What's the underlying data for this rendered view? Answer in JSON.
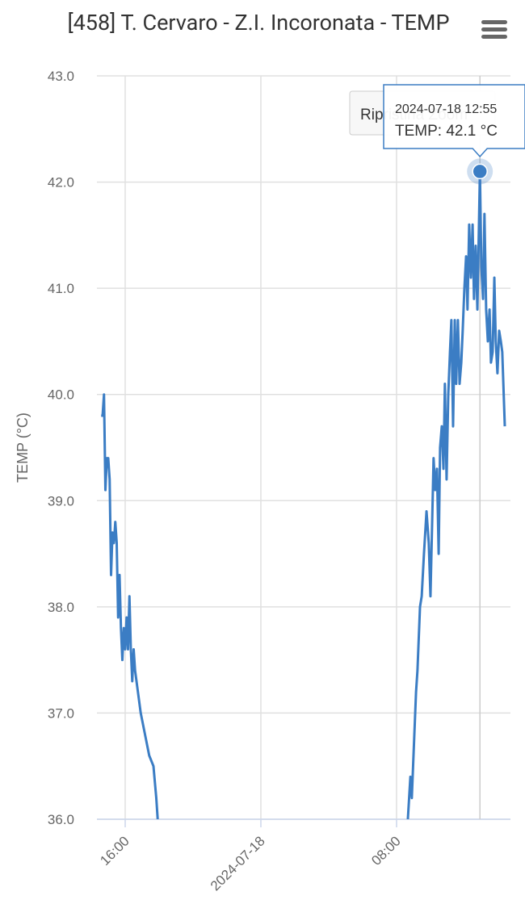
{
  "reset_zoom": "Ripristina Zoom",
  "chart_data": {
    "type": "line",
    "title": "[458] T. Cervaro - Z.I. Incoronata - TEMP",
    "y_label": "TEMP (°C)",
    "color": "#3b7dc4",
    "grid": true,
    "xlim": [
      "2024-07-17 14:20",
      "2024-07-18 14:43"
    ],
    "xticks": [
      {
        "value": "2024-07-17 16:00",
        "label": "16:00"
      },
      {
        "value": "2024-07-18 00:00",
        "label": "2024-07-18"
      },
      {
        "value": "2024-07-18 08:00",
        "label": "08:00"
      }
    ],
    "ylim": [
      36,
      43
    ],
    "yticks": [
      {
        "value": 36,
        "label": "36.0"
      },
      {
        "value": 37,
        "label": "37.0"
      },
      {
        "value": 38,
        "label": "38.0"
      },
      {
        "value": 39,
        "label": "39.0"
      },
      {
        "value": 40,
        "label": "40.0"
      },
      {
        "value": 41,
        "label": "41.0"
      },
      {
        "value": 42,
        "label": "42.0"
      },
      {
        "value": 43,
        "label": "43.0"
      }
    ],
    "x": [
      "2024-07-17 14:35",
      "2024-07-17 14:40",
      "2024-07-17 14:45",
      "2024-07-17 14:50",
      "2024-07-17 14:55",
      "2024-07-17 15:00",
      "2024-07-17 15:05",
      "2024-07-17 15:10",
      "2024-07-17 15:15",
      "2024-07-17 15:20",
      "2024-07-17 15:25",
      "2024-07-17 15:30",
      "2024-07-17 15:35",
      "2024-07-17 15:40",
      "2024-07-17 15:45",
      "2024-07-17 15:50",
      "2024-07-17 15:55",
      "2024-07-17 16:00",
      "2024-07-17 16:05",
      "2024-07-17 16:10",
      "2024-07-17 16:15",
      "2024-07-17 16:20",
      "2024-07-17 16:25",
      "2024-07-17 16:30",
      "2024-07-17 16:35",
      "2024-07-17 16:55",
      "2024-07-17 17:10",
      "2024-07-17 17:25",
      "2024-07-17 17:40",
      "2024-07-17 17:50",
      "2024-07-17 17:55",
      "2024-07-17 18:00",
      "2024-07-18 08:40",
      "2024-07-18 08:49",
      "2024-07-18 08:54",
      "2024-07-18 09:00",
      "2024-07-18 09:09",
      "2024-07-18 09:14",
      "2024-07-18 09:23",
      "2024-07-18 09:29",
      "2024-07-18 09:37",
      "2024-07-18 09:46",
      "2024-07-18 09:54",
      "2024-07-18 10:00",
      "2024-07-18 10:06",
      "2024-07-18 10:11",
      "2024-07-18 10:17",
      "2024-07-18 10:23",
      "2024-07-18 10:29",
      "2024-07-18 10:34",
      "2024-07-18 10:40",
      "2024-07-18 10:46",
      "2024-07-18 10:51",
      "2024-07-18 10:57",
      "2024-07-18 11:03",
      "2024-07-18 11:09",
      "2024-07-18 11:14",
      "2024-07-18 11:20",
      "2024-07-18 11:26",
      "2024-07-18 11:31",
      "2024-07-18 11:37",
      "2024-07-18 11:43",
      "2024-07-18 11:49",
      "2024-07-18 11:54",
      "2024-07-18 12:00",
      "2024-07-18 12:06",
      "2024-07-18 12:11",
      "2024-07-18 12:17",
      "2024-07-18 12:23",
      "2024-07-18 12:29",
      "2024-07-18 12:34",
      "2024-07-18 12:40",
      "2024-07-18 12:46",
      "2024-07-18 12:55",
      "2024-07-18 13:00",
      "2024-07-18 13:06",
      "2024-07-18 13:11",
      "2024-07-18 13:17",
      "2024-07-18 13:23",
      "2024-07-18 13:29",
      "2024-07-18 13:34",
      "2024-07-18 13:40",
      "2024-07-18 13:46",
      "2024-07-18 13:51",
      "2024-07-18 13:57",
      "2024-07-18 14:03",
      "2024-07-18 14:09",
      "2024-07-18 14:14",
      "2024-07-18 14:23"
    ],
    "values": [
      39.8,
      39.8,
      40.0,
      39.1,
      39.4,
      39.4,
      39.2,
      38.3,
      38.7,
      38.6,
      38.8,
      38.6,
      37.9,
      38.3,
      37.8,
      37.5,
      37.8,
      37.6,
      37.9,
      37.6,
      38.1,
      37.6,
      37.3,
      37.6,
      37.4,
      37.0,
      36.8,
      36.6,
      36.5,
      36.2,
      36.0,
      null,
      36.0,
      36.4,
      36.2,
      36.6,
      37.2,
      37.4,
      38.0,
      38.1,
      38.5,
      38.9,
      38.6,
      38.1,
      38.8,
      39.4,
      39.1,
      39.3,
      38.5,
      39.5,
      39.7,
      39.3,
      40.1,
      39.2,
      40.0,
      40.4,
      40.7,
      39.7,
      40.7,
      40.1,
      40.7,
      40.1,
      40.3,
      40.6,
      41.0,
      41.3,
      40.8,
      41.6,
      41.1,
      41.6,
      40.9,
      41.4,
      40.8,
      42.1,
      41.2,
      40.9,
      41.7,
      40.8,
      40.5,
      40.8,
      40.3,
      40.4,
      41.1,
      40.5,
      40.2,
      40.6,
      40.5,
      40.4,
      39.7
    ],
    "tooltip": {
      "title": "2024-07-18 12:55",
      "text": "TEMP: 42.1 °C"
    }
  }
}
